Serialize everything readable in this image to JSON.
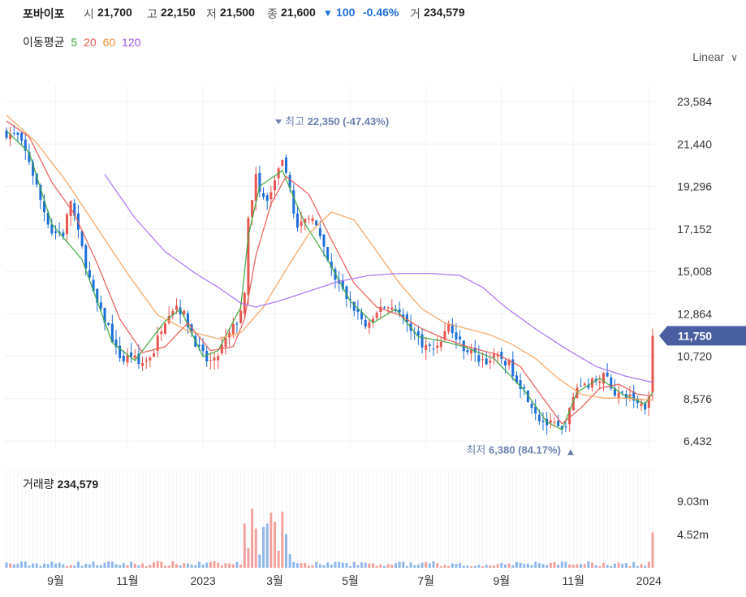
{
  "header": {
    "stock_name": "포바이포",
    "open_label": "시",
    "open": "21,700",
    "high_label": "고",
    "high": "22,150",
    "low_label": "저",
    "low": "21,500",
    "close_label": "종",
    "close": "21,600",
    "change_arrow": "▼",
    "change": "100",
    "change_pct": "-0.46%",
    "volume_label": "거",
    "volume": "234,579"
  },
  "moving_average": {
    "label": "이동평균",
    "periods": [
      {
        "value": "5",
        "color": "#3aa63a"
      },
      {
        "value": "20",
        "color": "#e8564f"
      },
      {
        "value": "60",
        "color": "#f08c2e"
      },
      {
        "value": "120",
        "color": "#9a55e8"
      }
    ]
  },
  "scale_selector": {
    "label": "Linear",
    "icon": "chevron-down-icon"
  },
  "colors": {
    "up": "#e8564f",
    "down": "#1e6fd9",
    "price_tag": "#4a5fa0",
    "annotation": "#6b7fb0"
  },
  "chart_data": {
    "type": "candlestick",
    "price_axis": {
      "ticks": [
        23584,
        21440,
        19296,
        17152,
        15008,
        12864,
        10720,
        8576,
        6432
      ],
      "tick_labels": [
        "23,584",
        "21,440",
        "19,296",
        "17,152",
        "15,008",
        "12,864",
        "10,720",
        "8,576",
        "6,432"
      ]
    },
    "volume_axis": {
      "ticks": [
        9030000,
        4520000
      ],
      "tick_labels": [
        "9.03m",
        "4.52m"
      ]
    },
    "x_axis": {
      "ticks": [
        "9월",
        "11월",
        "2023",
        "3월",
        "5월",
        "7월",
        "9월",
        "11월",
        "2024"
      ]
    },
    "current_price": {
      "value": 11750,
      "label": "11,750"
    },
    "annotations": {
      "high": {
        "label": "최고",
        "value": "22,350 (-47.43%)",
        "price": 22350
      },
      "low": {
        "label": "최저",
        "value": "6,380 (84.17%)",
        "price": 6380
      }
    },
    "volume_title": {
      "label": "거래량",
      "value": "234,579"
    },
    "close_path": [
      [
        0,
        22000
      ],
      [
        3,
        21800
      ],
      [
        6,
        20600
      ],
      [
        9,
        18600
      ],
      [
        12,
        17000
      ],
      [
        15,
        16900
      ],
      [
        17,
        18600
      ],
      [
        19,
        16900
      ],
      [
        21,
        15400
      ],
      [
        23,
        13800
      ],
      [
        25,
        12900
      ],
      [
        27,
        12200
      ],
      [
        29,
        11000
      ],
      [
        31,
        10500
      ],
      [
        33,
        10800
      ],
      [
        35,
        10300
      ],
      [
        37,
        10500
      ],
      [
        39,
        11000
      ],
      [
        41,
        12200
      ],
      [
        43,
        13000
      ],
      [
        45,
        13300
      ],
      [
        47,
        12800
      ],
      [
        49,
        11900
      ],
      [
        51,
        11000
      ],
      [
        53,
        10500
      ],
      [
        55,
        10400
      ],
      [
        57,
        11200
      ],
      [
        59,
        11800
      ],
      [
        61,
        12500
      ],
      [
        63,
        13700
      ],
      [
        64,
        17500
      ],
      [
        66,
        20100
      ],
      [
        67,
        18900
      ],
      [
        69,
        18500
      ],
      [
        71,
        19600
      ],
      [
        73,
        20400
      ],
      [
        75,
        19200
      ],
      [
        77,
        17100
      ],
      [
        79,
        17500
      ],
      [
        81,
        17900
      ],
      [
        83,
        16600
      ],
      [
        85,
        15500
      ],
      [
        87,
        14600
      ],
      [
        89,
        14000
      ],
      [
        91,
        13400
      ],
      [
        93,
        12900
      ],
      [
        95,
        12200
      ],
      [
        97,
        12400
      ],
      [
        99,
        13300
      ],
      [
        101,
        13200
      ],
      [
        103,
        13200
      ],
      [
        105,
        12600
      ],
      [
        107,
        12200
      ],
      [
        109,
        11600
      ],
      [
        111,
        11200
      ],
      [
        113,
        11100
      ],
      [
        115,
        11600
      ],
      [
        117,
        12300
      ],
      [
        119,
        11600
      ],
      [
        121,
        11200
      ],
      [
        123,
        10900
      ],
      [
        125,
        10600
      ],
      [
        127,
        10500
      ],
      [
        129,
        10600
      ],
      [
        131,
        10600
      ],
      [
        133,
        10300
      ],
      [
        135,
        9600
      ],
      [
        137,
        9000
      ],
      [
        139,
        8300
      ],
      [
        141,
        7600
      ],
      [
        143,
        7300
      ],
      [
        145,
        7200
      ],
      [
        147,
        6900
      ],
      [
        149,
        7900
      ],
      [
        151,
        9200
      ],
      [
        153,
        9300
      ],
      [
        155,
        9400
      ],
      [
        157,
        9700
      ],
      [
        159,
        9600
      ],
      [
        161,
        8900
      ],
      [
        163,
        8700
      ],
      [
        165,
        8700
      ],
      [
        167,
        8400
      ],
      [
        169,
        8200
      ],
      [
        170,
        8900
      ],
      [
        171,
        11750
      ]
    ],
    "moving_averages": {
      "ma5": [
        [
          0,
          22100
        ],
        [
          6,
          21000
        ],
        [
          12,
          17400
        ],
        [
          20,
          15600
        ],
        [
          28,
          11400
        ],
        [
          34,
          10500
        ],
        [
          42,
          12500
        ],
        [
          46,
          13100
        ],
        [
          52,
          10700
        ],
        [
          56,
          11000
        ],
        [
          62,
          13200
        ],
        [
          64,
          16800
        ],
        [
          67,
          19300
        ],
        [
          73,
          20100
        ],
        [
          79,
          17400
        ],
        [
          85,
          15600
        ],
        [
          91,
          13500
        ],
        [
          97,
          12400
        ],
        [
          103,
          13100
        ],
        [
          109,
          11700
        ],
        [
          115,
          11500
        ],
        [
          121,
          11200
        ],
        [
          129,
          10600
        ],
        [
          137,
          9000
        ],
        [
          143,
          7400
        ],
        [
          147,
          7000
        ],
        [
          151,
          8900
        ],
        [
          157,
          9600
        ],
        [
          163,
          8800
        ],
        [
          169,
          8300
        ],
        [
          171,
          8900
        ]
      ],
      "ma20": [
        [
          0,
          22600
        ],
        [
          6,
          21800
        ],
        [
          12,
          19500
        ],
        [
          18,
          17900
        ],
        [
          24,
          15400
        ],
        [
          30,
          12600
        ],
        [
          36,
          10900
        ],
        [
          42,
          11200
        ],
        [
          48,
          12400
        ],
        [
          54,
          11000
        ],
        [
          60,
          11200
        ],
        [
          63,
          12600
        ],
        [
          66,
          15800
        ],
        [
          70,
          18400
        ],
        [
          74,
          19800
        ],
        [
          80,
          18900
        ],
        [
          86,
          16600
        ],
        [
          92,
          14400
        ],
        [
          98,
          13200
        ],
        [
          104,
          12800
        ],
        [
          110,
          12100
        ],
        [
          116,
          11600
        ],
        [
          122,
          11200
        ],
        [
          130,
          10800
        ],
        [
          136,
          10200
        ],
        [
          142,
          8600
        ],
        [
          147,
          7300
        ],
        [
          152,
          8100
        ],
        [
          157,
          9100
        ],
        [
          162,
          9300
        ],
        [
          167,
          8800
        ],
        [
          171,
          8700
        ]
      ],
      "ma60": [
        [
          0,
          22900
        ],
        [
          8,
          21500
        ],
        [
          16,
          19500
        ],
        [
          24,
          17200
        ],
        [
          32,
          14900
        ],
        [
          40,
          12800
        ],
        [
          48,
          12000
        ],
        [
          56,
          11600
        ],
        [
          62,
          11900
        ],
        [
          68,
          13200
        ],
        [
          74,
          15100
        ],
        [
          80,
          16900
        ],
        [
          86,
          18000
        ],
        [
          92,
          17600
        ],
        [
          98,
          16000
        ],
        [
          104,
          14400
        ],
        [
          110,
          13100
        ],
        [
          116,
          12400
        ],
        [
          122,
          12100
        ],
        [
          128,
          11800
        ],
        [
          134,
          11300
        ],
        [
          140,
          10600
        ],
        [
          146,
          9600
        ],
        [
          152,
          8800
        ],
        [
          158,
          8600
        ],
        [
          164,
          8600
        ],
        [
          171,
          8500
        ]
      ],
      "ma120": [
        [
          26,
          19900
        ],
        [
          34,
          17700
        ],
        [
          42,
          16000
        ],
        [
          50,
          14900
        ],
        [
          56,
          14200
        ],
        [
          62,
          13400
        ],
        [
          66,
          13200
        ],
        [
          72,
          13500
        ],
        [
          80,
          14000
        ],
        [
          88,
          14500
        ],
        [
          96,
          14800
        ],
        [
          104,
          14900
        ],
        [
          112,
          14900
        ],
        [
          120,
          14800
        ],
        [
          126,
          14200
        ],
        [
          132,
          13200
        ],
        [
          140,
          12100
        ],
        [
          148,
          11100
        ],
        [
          156,
          10200
        ],
        [
          164,
          9700
        ],
        [
          171,
          9400
        ]
      ]
    },
    "grid": true,
    "legend": "top-left"
  }
}
